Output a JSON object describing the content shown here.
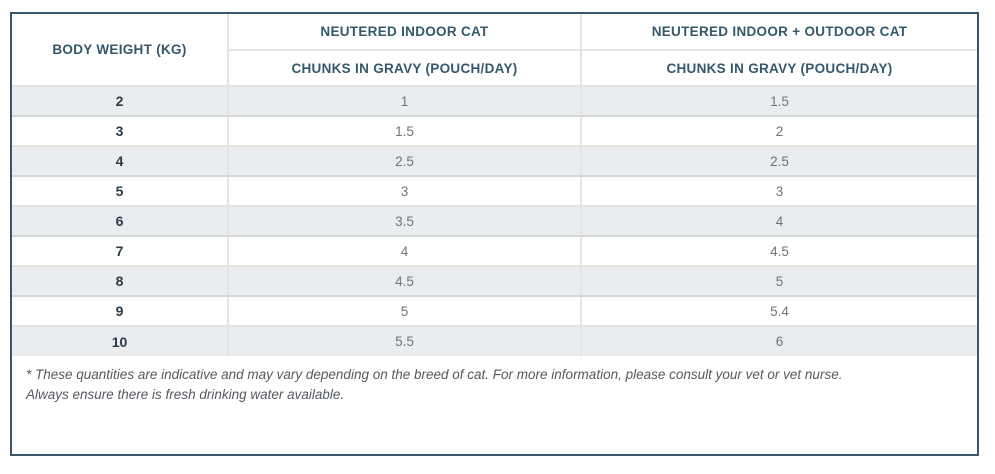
{
  "chart_data": {
    "type": "table",
    "title": "",
    "headers": {
      "body_weight": "BODY WEIGHT (KG)",
      "indoor_top": "NEUTERED INDOOR CAT",
      "indoor_sub": "CHUNKS IN GRAVY (POUCH/DAY)",
      "outdoor_top": "NEUTERED INDOOR + OUTDOOR CAT",
      "outdoor_sub": "CHUNKS IN GRAVY (POUCH/DAY)"
    },
    "columns": [
      "BODY WEIGHT (KG)",
      "NEUTERED INDOOR CAT - CHUNKS IN GRAVY (POUCH/DAY)",
      "NEUTERED INDOOR + OUTDOOR CAT - CHUNKS IN GRAVY (POUCH/DAY)"
    ],
    "rows": [
      [
        "2",
        "1",
        "1.5"
      ],
      [
        "3",
        "1.5",
        "2"
      ],
      [
        "4",
        "2.5",
        "2.5"
      ],
      [
        "5",
        "3",
        "3"
      ],
      [
        "6",
        "3.5",
        "4"
      ],
      [
        "7",
        "4",
        "4.5"
      ],
      [
        "8",
        "4.5",
        "5"
      ],
      [
        "9",
        "5",
        "5.4"
      ],
      [
        "10",
        "5.5",
        "6"
      ]
    ],
    "layout": {
      "first_data_row_striped": true,
      "grid": true
    }
  },
  "footnote": {
    "line1": "* These quantities are indicative and may vary depending on the breed of cat. For more information, please consult your vet or vet nurse.",
    "line2": "Always ensure there is fresh drinking water available."
  },
  "colors": {
    "outer_border": "#3A586A",
    "header_text": "#35586C",
    "inner_grid": "#E6E4DE",
    "stripe_bg": "#EAEDEF",
    "weight_text": "#2B3B47",
    "value_text": "#6E7479",
    "footnote_text": "#555A60"
  }
}
